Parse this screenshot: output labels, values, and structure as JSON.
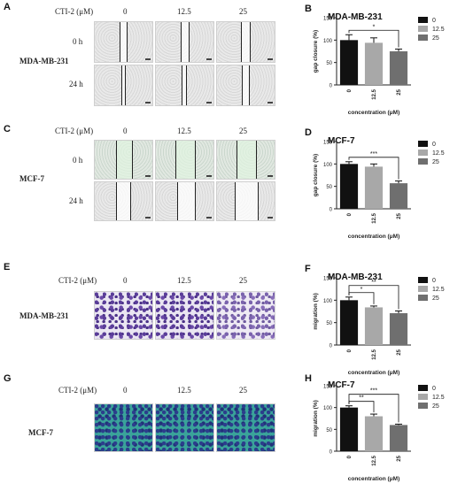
{
  "panels": {
    "A": {
      "letter": "A",
      "treatment_label": "CTI-2 (μM)",
      "concentrations": [
        "0",
        "12.5",
        "25"
      ],
      "time_labels": [
        "0 h",
        "24 h"
      ],
      "cell_line": "MDA-MB-231"
    },
    "C": {
      "letter": "C",
      "treatment_label": "CTI-2 (μM)",
      "concentrations": [
        "0",
        "12.5",
        "25"
      ],
      "time_labels": [
        "0 h",
        "24 h"
      ],
      "cell_line": "MCF-7"
    },
    "E": {
      "letter": "E",
      "treatment_label": "CTI-2 (μM)",
      "concentrations": [
        "0",
        "12.5",
        "25"
      ],
      "cell_line": "MDA-MB-231"
    },
    "G": {
      "letter": "G",
      "treatment_label": "CTI-2 (μM)",
      "concentrations": [
        "0",
        "12.5",
        "25"
      ],
      "cell_line": "MCF-7"
    }
  },
  "colors": {
    "bar0": "#111111",
    "bar1": "#a8a8a8",
    "bar2": "#6f6f6f"
  },
  "chart_data": [
    {
      "letter": "B",
      "type": "bar",
      "title": "MDA-MB-231",
      "categories": [
        "0",
        "12.5",
        "25"
      ],
      "values": [
        100,
        94,
        75
      ],
      "errors": [
        12,
        11,
        5
      ],
      "xlabel": "concentration (μM)",
      "ylabel": "gap closure (%)",
      "ylim": [
        0,
        150
      ],
      "yticks": [
        0,
        50,
        100,
        150
      ],
      "legend": [
        "0",
        "12.5",
        "25"
      ],
      "annotations": [
        {
          "from": 0,
          "to": 2,
          "text": "*"
        }
      ]
    },
    {
      "letter": "D",
      "type": "bar",
      "title": "MCF-7",
      "categories": [
        "0",
        "12.5",
        "25"
      ],
      "values": [
        100,
        94,
        57
      ],
      "errors": [
        5,
        6,
        5
      ],
      "xlabel": "concentration (μM)",
      "ylabel": "gap closure (%)",
      "ylim": [
        0,
        150
      ],
      "yticks": [
        0,
        50,
        100,
        150
      ],
      "legend": [
        "0",
        "12.5",
        "25"
      ],
      "annotations": [
        {
          "from": 0,
          "to": 2,
          "text": "***"
        }
      ]
    },
    {
      "letter": "F",
      "type": "bar",
      "title": "MDA-MB-231",
      "categories": [
        "0",
        "12.5",
        "25"
      ],
      "values": [
        100,
        84,
        71
      ],
      "errors": [
        7,
        3,
        5
      ],
      "xlabel": "concentration (μM)",
      "ylabel": "migration (%)",
      "ylim": [
        0,
        150
      ],
      "yticks": [
        0,
        50,
        100,
        150
      ],
      "legend": [
        "0",
        "12.5",
        "25"
      ],
      "annotations": [
        {
          "from": 0,
          "to": 1,
          "text": "*"
        },
        {
          "from": 0,
          "to": 2,
          "text": "**"
        }
      ]
    },
    {
      "letter": "H",
      "type": "bar",
      "title": "MCF-7",
      "categories": [
        "0",
        "12.5",
        "25"
      ],
      "values": [
        100,
        80,
        60
      ],
      "errors": [
        4,
        5,
        2
      ],
      "xlabel": "concentration (μM)",
      "ylabel": "migration (%)",
      "ylim": [
        0,
        150
      ],
      "yticks": [
        0,
        50,
        100,
        150
      ],
      "legend": [
        "0",
        "12.5",
        "25"
      ],
      "annotations": [
        {
          "from": 0,
          "to": 1,
          "text": "**"
        },
        {
          "from": 0,
          "to": 2,
          "text": "***"
        }
      ]
    }
  ]
}
